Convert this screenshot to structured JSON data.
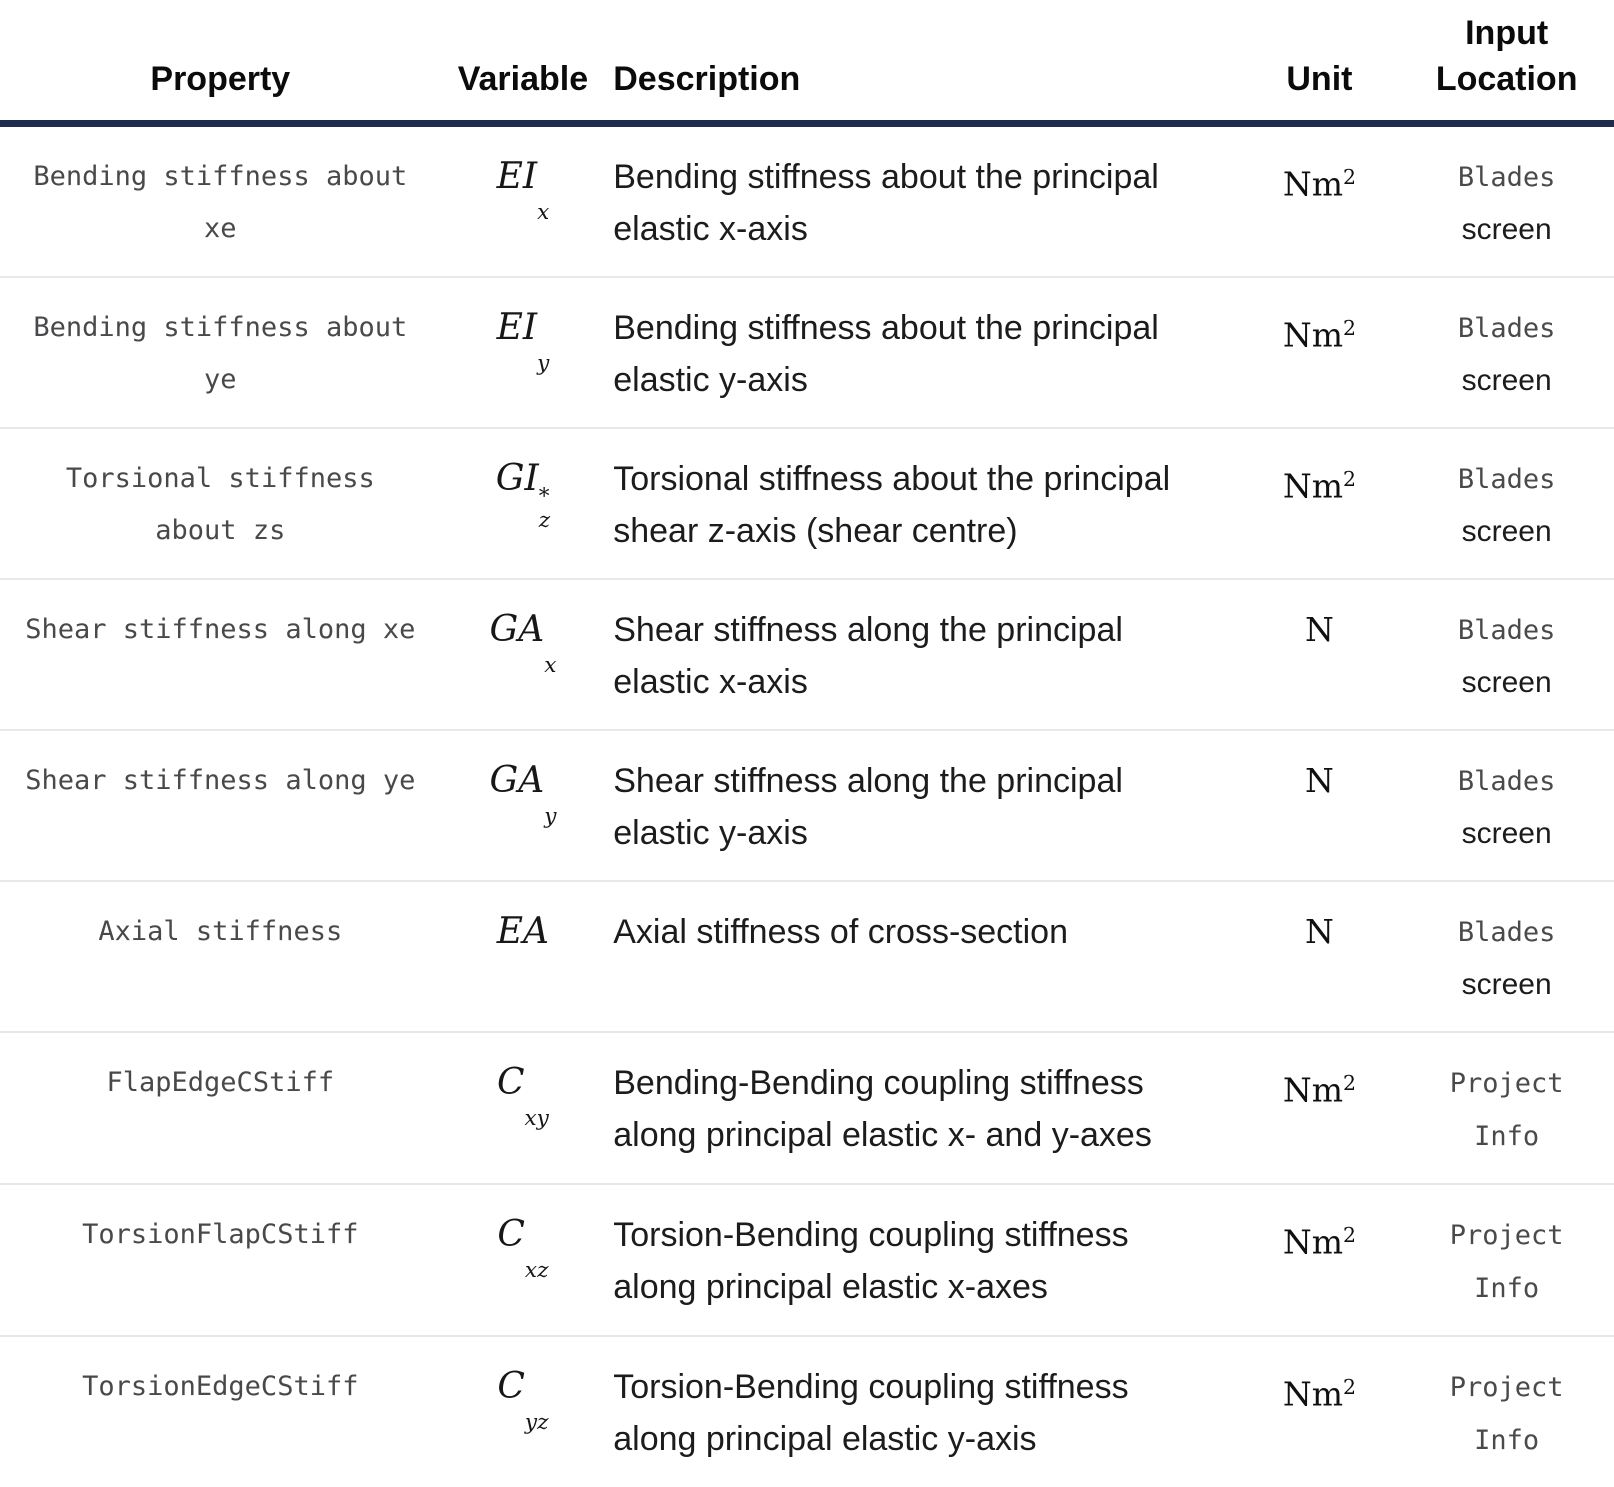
{
  "table": {
    "headers": {
      "property": "Property",
      "variable": "Variable",
      "description": "Description",
      "unit": "Unit",
      "location": "Input Location"
    },
    "rows": [
      {
        "property": "Bending stiffness about xe",
        "variable": {
          "base": "EI",
          "sup": "",
          "sub": "x"
        },
        "description": "Bending stiffness about the principal elastic x-axis",
        "unit": {
          "base": "Nm",
          "sup": "2"
        },
        "location": {
          "code": "Blades",
          "plain": "screen"
        }
      },
      {
        "property": "Bending stiffness about ye",
        "variable": {
          "base": "EI",
          "sup": "",
          "sub": "y"
        },
        "description": "Bending stiffness about the principal elastic y-axis",
        "unit": {
          "base": "Nm",
          "sup": "2"
        },
        "location": {
          "code": "Blades",
          "plain": "screen"
        }
      },
      {
        "property": "Torsional stiffness about zs",
        "variable": {
          "base": "GI",
          "sup": "*",
          "sub": "z"
        },
        "description": "Torsional stiffness about the principal shear z-axis (shear centre)",
        "unit": {
          "base": "Nm",
          "sup": "2"
        },
        "location": {
          "code": "Blades",
          "plain": "screen"
        }
      },
      {
        "property": "Shear stiffness along xe",
        "variable": {
          "base": "GA",
          "sup": "",
          "sub": "x"
        },
        "description": "Shear stiffness along the principal elastic x-axis",
        "unit": {
          "base": "N",
          "sup": ""
        },
        "location": {
          "code": "Blades",
          "plain": "screen"
        }
      },
      {
        "property": "Shear stiffness along ye",
        "variable": {
          "base": "GA",
          "sup": "",
          "sub": "y"
        },
        "description": "Shear stiffness along the principal elastic y-axis",
        "unit": {
          "base": "N",
          "sup": ""
        },
        "location": {
          "code": "Blades",
          "plain": "screen"
        }
      },
      {
        "property": "Axial stiffness",
        "variable": {
          "base": "EA",
          "sup": "",
          "sub": ""
        },
        "description": "Axial stiffness of cross-section",
        "unit": {
          "base": "N",
          "sup": ""
        },
        "location": {
          "code": "Blades",
          "plain": "screen"
        }
      },
      {
        "property": "FlapEdgeCStiff",
        "variable": {
          "base": "C",
          "sup": "",
          "sub": "xy"
        },
        "description": "Bending-Bending coupling stiffness along principal elastic x- and y-axes",
        "unit": {
          "base": "Nm",
          "sup": "2"
        },
        "location": {
          "code": "Project Info",
          "plain": ""
        }
      },
      {
        "property": "TorsionFlapCStiff",
        "variable": {
          "base": "C",
          "sup": "",
          "sub": "xz"
        },
        "description": "Torsion-Bending coupling stiffness along principal elastic x-axes",
        "unit": {
          "base": "Nm",
          "sup": "2"
        },
        "location": {
          "code": "Project Info",
          "plain": ""
        }
      },
      {
        "property": "TorsionEdgeCStiff",
        "variable": {
          "base": "C",
          "sup": "",
          "sub": "yz"
        },
        "description": "Torsion-Bending coupling stiffness along principal elastic y-axis",
        "unit": {
          "base": "Nm",
          "sup": "2"
        },
        "location": {
          "code": "Project Info",
          "plain": ""
        }
      }
    ]
  }
}
